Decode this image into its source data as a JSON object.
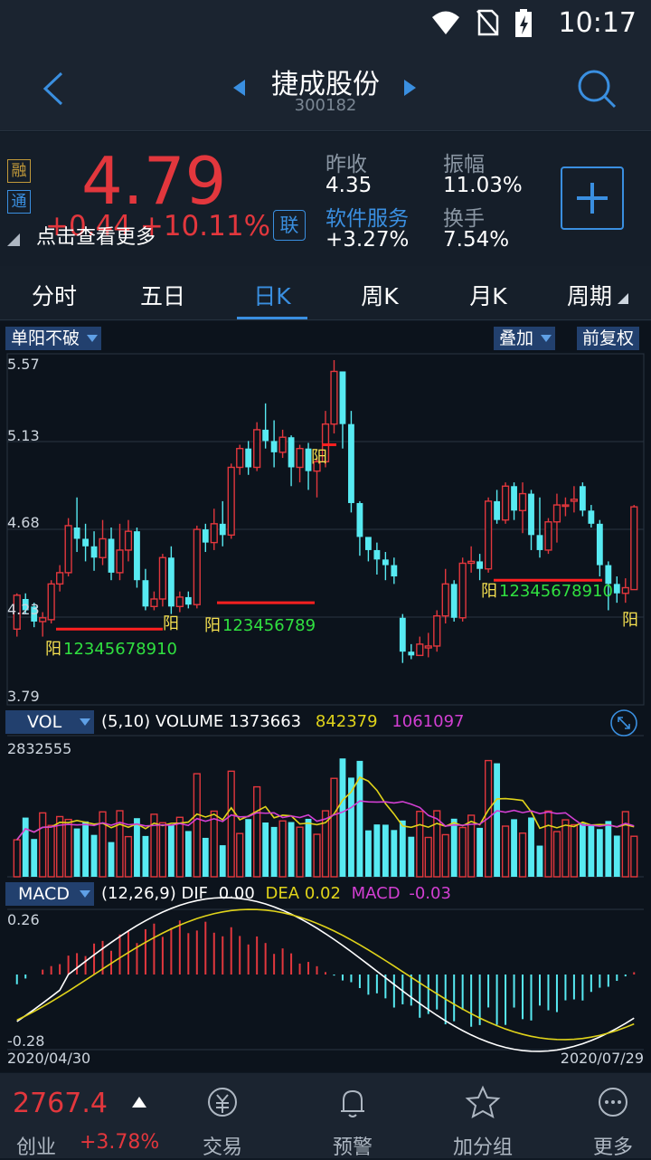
{
  "status": {
    "time": "10:17"
  },
  "header": {
    "title": "捷成股份",
    "code": "300182"
  },
  "quote": {
    "badge1": "融",
    "badge2": "通",
    "price": "4.79",
    "change": "+0.44  +10.11%",
    "tip": "点击查看更多",
    "lian": "联",
    "prev_close_label": "昨收",
    "prev_close": "4.35",
    "amplitude_label": "振幅",
    "amplitude": "11.03%",
    "sector_label": "软件服务",
    "sector_change": "+3.27%",
    "turnover_label": "换手",
    "turnover": "7.54%"
  },
  "tabs": [
    "分时",
    "五日",
    "日K",
    "周K",
    "月K",
    "周期"
  ],
  "chart_controls": {
    "indicator": "单阳不破",
    "overlay": "叠加",
    "adjust": "前复权"
  },
  "kline": {
    "ymax": "5.57",
    "y2": "5.13",
    "y3": "4.68",
    "y4": "4.23",
    "ymin": "3.79",
    "mark": "阳",
    "count_a": "12345678910",
    "count_b": "123456789",
    "count_c": "12345678910"
  },
  "vol": {
    "name": "VOL",
    "params": "(5,10) VOLUME",
    "volume": "1373663",
    "ma5": "842379",
    "ma10": "1061097",
    "max": "2832555"
  },
  "macd": {
    "name": "MACD",
    "params": "(12,26,9) DIF",
    "dif": "0.00",
    "dea_label": "DEA",
    "dea": "0.02",
    "macd_label": "MACD",
    "macd": "-0.03",
    "top": "0.26",
    "bottom": "-0.28",
    "date_start": "2020/04/30",
    "date_end": "2020/07/29"
  },
  "colors": {
    "up": "#e2373d",
    "down": "#57eaf2",
    "ma5": "#e0d31a",
    "ma10": "#d23fd2",
    "accent": "#3a8fe0"
  },
  "bottom": {
    "index_value": "2767.4",
    "index_name": "创业",
    "index_change": "+3.78%",
    "items": [
      "交易",
      "预警",
      "加分组",
      "更多"
    ]
  }
}
